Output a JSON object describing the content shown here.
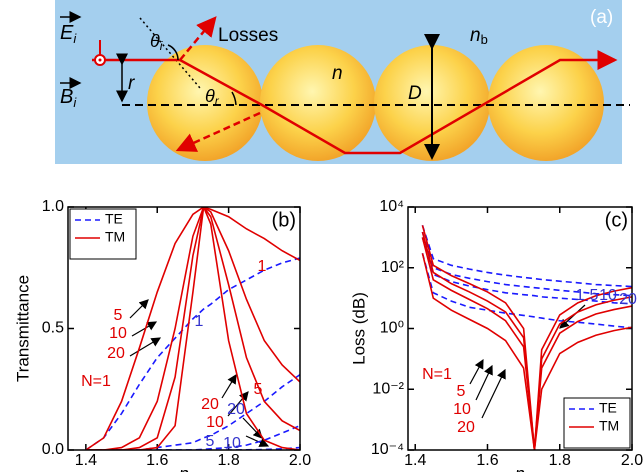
{
  "figure": {
    "panel_label": "(a)",
    "e_field": {
      "text": "E",
      "sub": "i"
    },
    "b_field": {
      "text": "B",
      "sub": "i"
    },
    "theta_i": {
      "text": "θ",
      "sub": "i"
    },
    "theta_r": {
      "text": "θ",
      "sub": "r"
    },
    "r": "r",
    "losses": "Losses",
    "n_b": {
      "text": "n",
      "sub": "b"
    },
    "n": "n",
    "D": "D"
  },
  "chart_data": [
    {
      "type": "line",
      "panel_label": "(b)",
      "x_label": "n",
      "y_label": "Transmittance",
      "x": [
        1.4,
        1.45,
        1.5,
        1.55,
        1.6,
        1.65,
        1.7,
        1.73,
        1.75,
        1.8,
        1.85,
        1.9,
        1.95,
        2.0
      ],
      "xlim": [
        1.35,
        2.0
      ],
      "xticks": [
        1.4,
        1.6,
        1.8,
        {
          "value": 2,
          "label": "2.0"
        }
      ],
      "ylim": [
        0,
        1
      ],
      "yticks": [
        {
          "value": 0,
          "label": "0.0"
        },
        0.5,
        {
          "value": 1,
          "label": "1.0"
        }
      ],
      "log_y": false,
      "legend": "upper left",
      "series": [
        {
          "name": "TE",
          "color": "#1a1aff",
          "dashed": true,
          "curves": [
            [
              0,
              0.05,
              0.15,
              0.27,
              0.38,
              0.46,
              0.54,
              0.58,
              0.6,
              0.66,
              0.7,
              0.74,
              0.77,
              0.79
            ],
            [
              0,
              0,
              0,
              0,
              0.01,
              0.02,
              0.03,
              0.05,
              0.06,
              0.1,
              0.15,
              0.2,
              0.26,
              0.31
            ],
            [
              0,
              0,
              0,
              0,
              0,
              0,
              0,
              0.003,
              0.005,
              0.01,
              0.02,
              0.04,
              0.07,
              0.1
            ],
            [
              0,
              0,
              0,
              0,
              0,
              0,
              0,
              0,
              0,
              0,
              0.001,
              0.002,
              0.005,
              0.01
            ]
          ]
        },
        {
          "name": "TM",
          "color": "#e00000",
          "dashed": false,
          "curves": [
            [
              0,
              0.05,
              0.2,
              0.42,
              0.65,
              0.85,
              0.97,
              1,
              0.99,
              0.96,
              0.91,
              0.87,
              0.82,
              0.78
            ],
            [
              0,
              0,
              0.01,
              0.05,
              0.2,
              0.5,
              0.88,
              1,
              0.98,
              0.82,
              0.62,
              0.45,
              0.35,
              0.28
            ],
            [
              0,
              0,
              0,
              0.01,
              0.05,
              0.3,
              0.8,
              1,
              0.96,
              0.68,
              0.38,
              0.2,
              0.12,
              0.08
            ],
            [
              0,
              0,
              0,
              0,
              0.01,
              0.1,
              0.65,
              1,
              0.93,
              0.45,
              0.15,
              0.04,
              0.01,
              0
            ]
          ]
        }
      ],
      "annotations": [
        {
          "text": "N=1",
          "color": "#e00000"
        },
        {
          "text": "5",
          "color": "#e00000"
        },
        {
          "text": "10",
          "color": "#e00000"
        },
        {
          "text": "20",
          "color": "#e00000"
        },
        {
          "text": "1",
          "color": "#e00000"
        },
        {
          "text": "5",
          "color": "#e00000"
        },
        {
          "text": "20",
          "color": "#e00000"
        },
        {
          "text": "10",
          "color": "#e00000"
        },
        {
          "text": "1",
          "color": "#3333cc"
        },
        {
          "text": "20",
          "color": "#3333cc"
        },
        {
          "text": "5",
          "color": "#3333cc"
        },
        {
          "text": "10",
          "color": "#3333cc"
        }
      ]
    },
    {
      "type": "line",
      "panel_label": "(c)",
      "x_label": "n",
      "y_label": "Loss (dB)",
      "x": [
        1.42,
        1.45,
        1.5,
        1.55,
        1.6,
        1.65,
        1.7,
        1.73,
        1.75,
        1.8,
        1.85,
        1.9,
        1.95,
        2.0
      ],
      "xlim": [
        1.38,
        2.0
      ],
      "xticks": [
        1.4,
        1.6,
        1.8,
        {
          "value": 2,
          "label": "2.0"
        }
      ],
      "ylim": [
        0.0001,
        10000
      ],
      "yticks": [
        {
          "value": 0.0001,
          "label": "10⁻⁴"
        },
        {
          "value": 0.01,
          "label": "10⁻²"
        },
        {
          "value": 1,
          "label": "10⁰"
        },
        {
          "value": 100,
          "label": "10²"
        },
        {
          "value": 10000,
          "label": "10⁴"
        }
      ],
      "log_y": true,
      "legend": "lower right",
      "series": [
        {
          "name": "TE",
          "color": "#1a1aff",
          "dashed": true,
          "curves": [
            [
              300,
              15,
              8,
              5,
              4,
              3.2,
              2.7,
              2.4,
              2.2,
              1.8,
              1.6,
              1.4,
              1.2,
              1.05
            ],
            [
              1000,
              60,
              35,
              25,
              19,
              15,
              13,
              12,
              11,
              10,
              9,
              8,
              7,
              6.5
            ],
            [
              1500,
              100,
              60,
              45,
              35,
              28,
              24,
              22,
              21,
              18,
              16,
              14,
              13,
              12
            ],
            [
              2500,
              200,
              120,
              90,
              70,
              57,
              48,
              44,
              41,
              36,
              32,
              28,
              26,
              24
            ]
          ]
        },
        {
          "name": "TM",
          "color": "#e00000",
          "dashed": false,
          "curves": [
            [
              300,
              10,
              4,
              2,
              1,
              0.4,
              0.05,
              0.0001,
              0.01,
              0.15,
              0.35,
              0.6,
              0.85,
              1.1
            ],
            [
              1000,
              40,
              18,
              9,
              4.5,
              1.8,
              0.25,
              0.0001,
              0.05,
              0.7,
              1.7,
              3,
              4.2,
              5.5
            ],
            [
              1500,
              70,
              30,
              16,
              8,
              3.5,
              0.5,
              0.0001,
              0.1,
              1.4,
              3.5,
              6,
              8.5,
              11
            ],
            [
              2500,
              120,
              55,
              30,
              16,
              7,
              1,
              0.0001,
              0.2,
              2.8,
              7,
              12,
              17,
              22
            ]
          ]
        }
      ],
      "annotations": [
        {
          "text": "N=1",
          "color": "#e00000"
        },
        {
          "text": "5",
          "color": "#e00000"
        },
        {
          "text": "10",
          "color": "#e00000"
        },
        {
          "text": "20",
          "color": "#e00000"
        },
        {
          "text": "1",
          "color": "#3333cc"
        },
        {
          "text": "5",
          "color": "#3333cc"
        },
        {
          "text": "10",
          "color": "#3333cc"
        },
        {
          "text": "20",
          "color": "#3333cc"
        }
      ]
    }
  ]
}
